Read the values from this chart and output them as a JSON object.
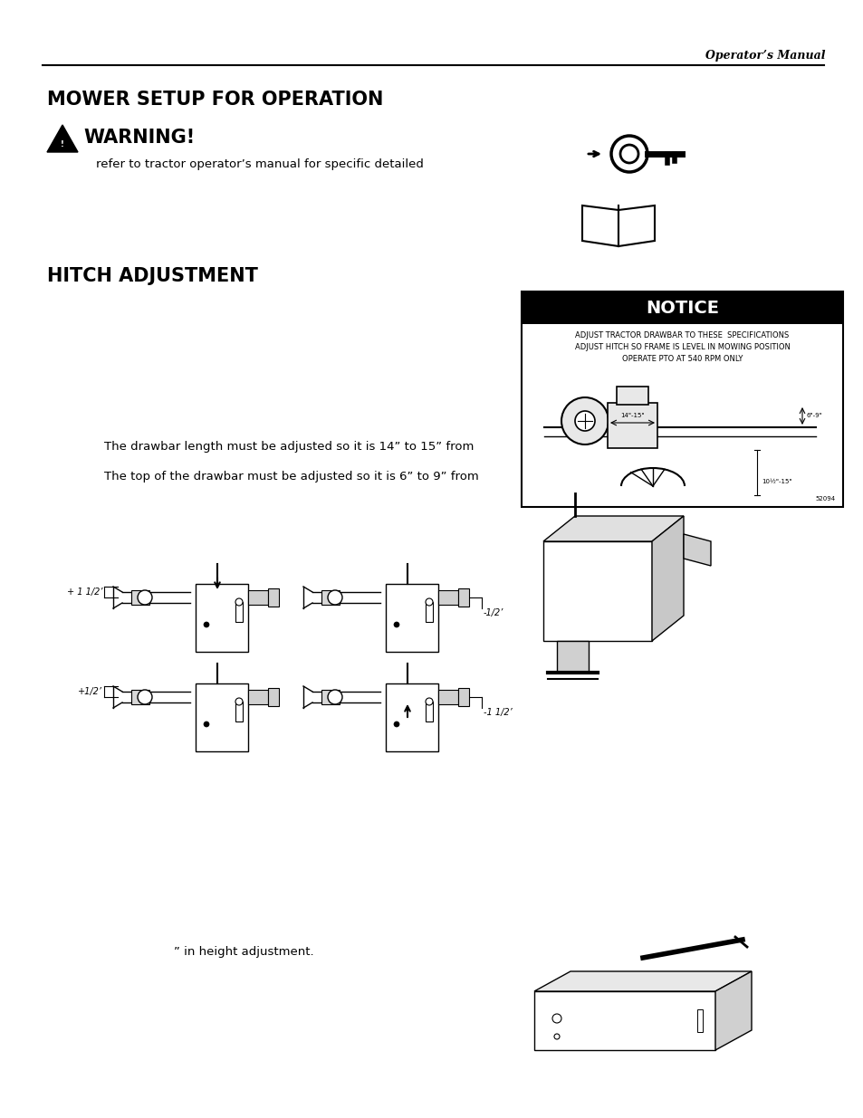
{
  "page_header_right": "Operator’s Manual",
  "title1": "MOWER SETUP FOR OPERATION",
  "warning_title": "WARNING!",
  "warning_text": "refer to tractor operator’s manual for specific detailed",
  "title2": "HITCH ADJUSTMENT",
  "drawbar_text": "The drawbar length must be adjusted so it is 14” to 15” from",
  "drawbar_text2": "The top of the drawbar must be adjusted so it is 6” to 9” from",
  "footer_text": "” in height adjustment.",
  "notice_title": "NOTICE",
  "notice_line1": "ADJUST TRACTOR DRAWBAR TO THESE  SPECIFICATIONS",
  "notice_line2": "ADJUST HITCH SO FRAME IS LEVEL IN MOWING POSITION",
  "notice_line3": "OPERATE PTO AT 540 RPM ONLY",
  "notice_dim1": "14\"-15\"",
  "notice_dim2": "6\"-9\"",
  "notice_dim3": "10½\"-15\"",
  "notice_partno": "52094",
  "label_tl": "+ 1 1/2’",
  "label_tr": "-1/2’",
  "label_bl": "+1/2’",
  "label_br": "-1 1/2’",
  "bg_color": "#ffffff",
  "text_color": "#000000"
}
